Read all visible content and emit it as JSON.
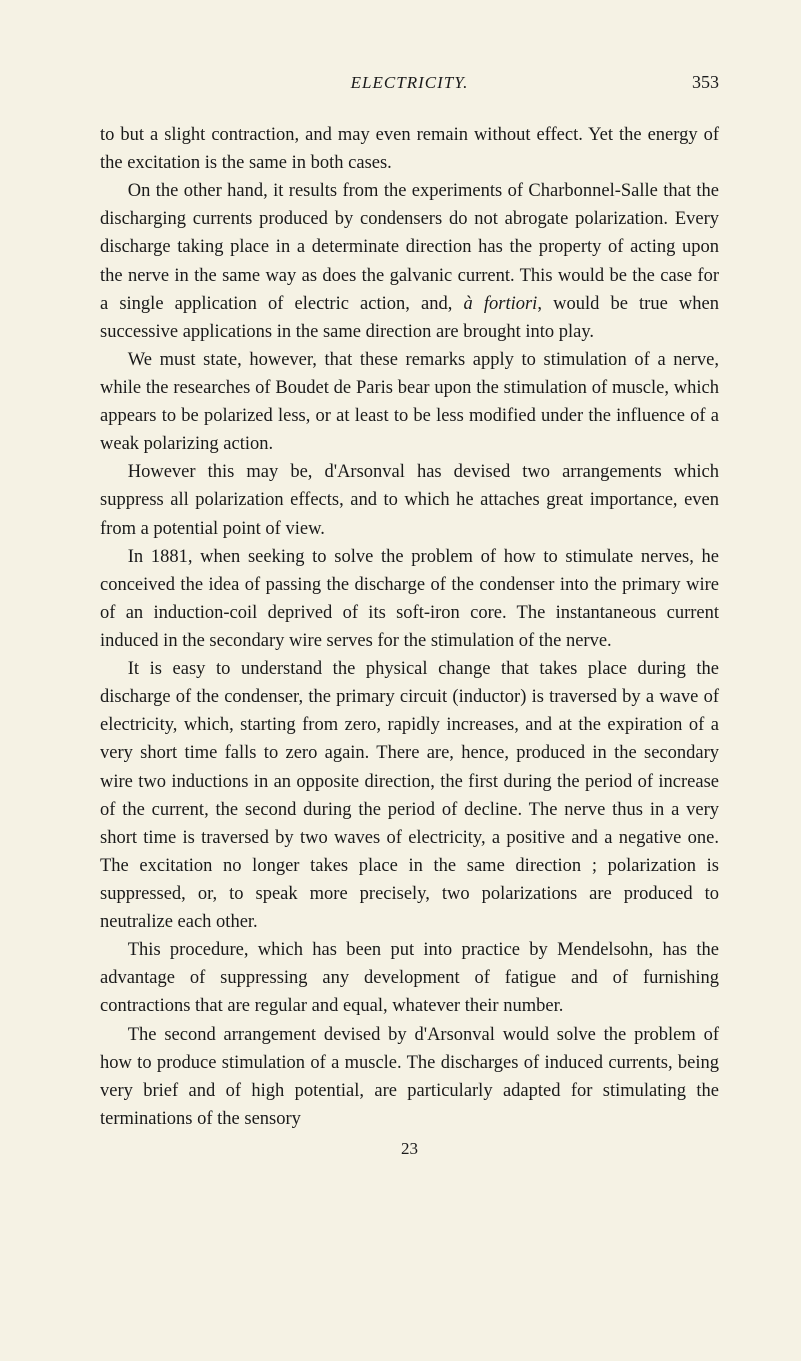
{
  "header": {
    "running_title": "ELECTRICITY.",
    "page_number": "353"
  },
  "paragraphs": {
    "p1": "to but a slight contraction, and may even remain without effect. Yet the energy of the excitation is the same in both cases.",
    "p2_a": "On the other hand, it results from the experiments of Charbonnel-Salle that the discharging currents produced by condensers do not abrogate polarization. Every discharge taking place in a determinate direction has the property of acting upon the nerve in the same way as does the galvanic current. This would be the case for a single application of electric action, and, ",
    "p2_italic": "à fortiori",
    "p2_b": ", would be true when successive applications in the same direction are brought into play.",
    "p3": "We must state, however, that these remarks apply to stimulation of a nerve, while the researches of Boudet de Paris bear upon the stimulation of muscle, which appears to be polarized less, or at least to be less modified under the influence of a weak polarizing action.",
    "p4": "However this may be, d'Arsonval has devised two arrangements which suppress all polarization effects, and to which he attaches great importance, even from a potential point of view.",
    "p5": "In 1881, when seeking to solve the problem of how to stimulate nerves, he conceived the idea of passing the discharge of the condenser into the primary wire of an induction-coil deprived of its soft-iron core. The instantaneous current induced in the secondary wire serves for the stimulation of the nerve.",
    "p6": "It is easy to understand the physical change that takes place during the discharge of the condenser, the primary circuit (inductor) is traversed by a wave of electricity, which, starting from zero, rapidly increases, and at the expiration of a very short time falls to zero again. There are, hence, produced in the secondary wire two inductions in an opposite direction, the first during the period of increase of the current, the second during the period of decline. The nerve thus in a very short time is traversed by two waves of electricity, a positive and a negative one. The excitation no longer takes place in the same direction ; polarization is suppressed, or, to speak more precisely, two polarizations are produced to neutralize each other.",
    "p7": "This procedure, which has been put into practice by Mendelsohn, has the advantage of suppressing any development of fatigue and of furnishing contractions that are regular and equal, whatever their number.",
    "p8": "The second arrangement devised by d'Arsonval would solve the problem of how to produce stimulation of a muscle. The discharges of induced currents, being very brief and of high potential, are particularly adapted for stimulating the terminations of the sensory"
  },
  "signature": "23",
  "colors": {
    "background": "#f5f2e4",
    "text": "#1a1a1a"
  },
  "typography": {
    "body_fontsize": 18.5,
    "header_fontsize": 17,
    "line_height": 1.52,
    "font_family": "Times New Roman"
  }
}
